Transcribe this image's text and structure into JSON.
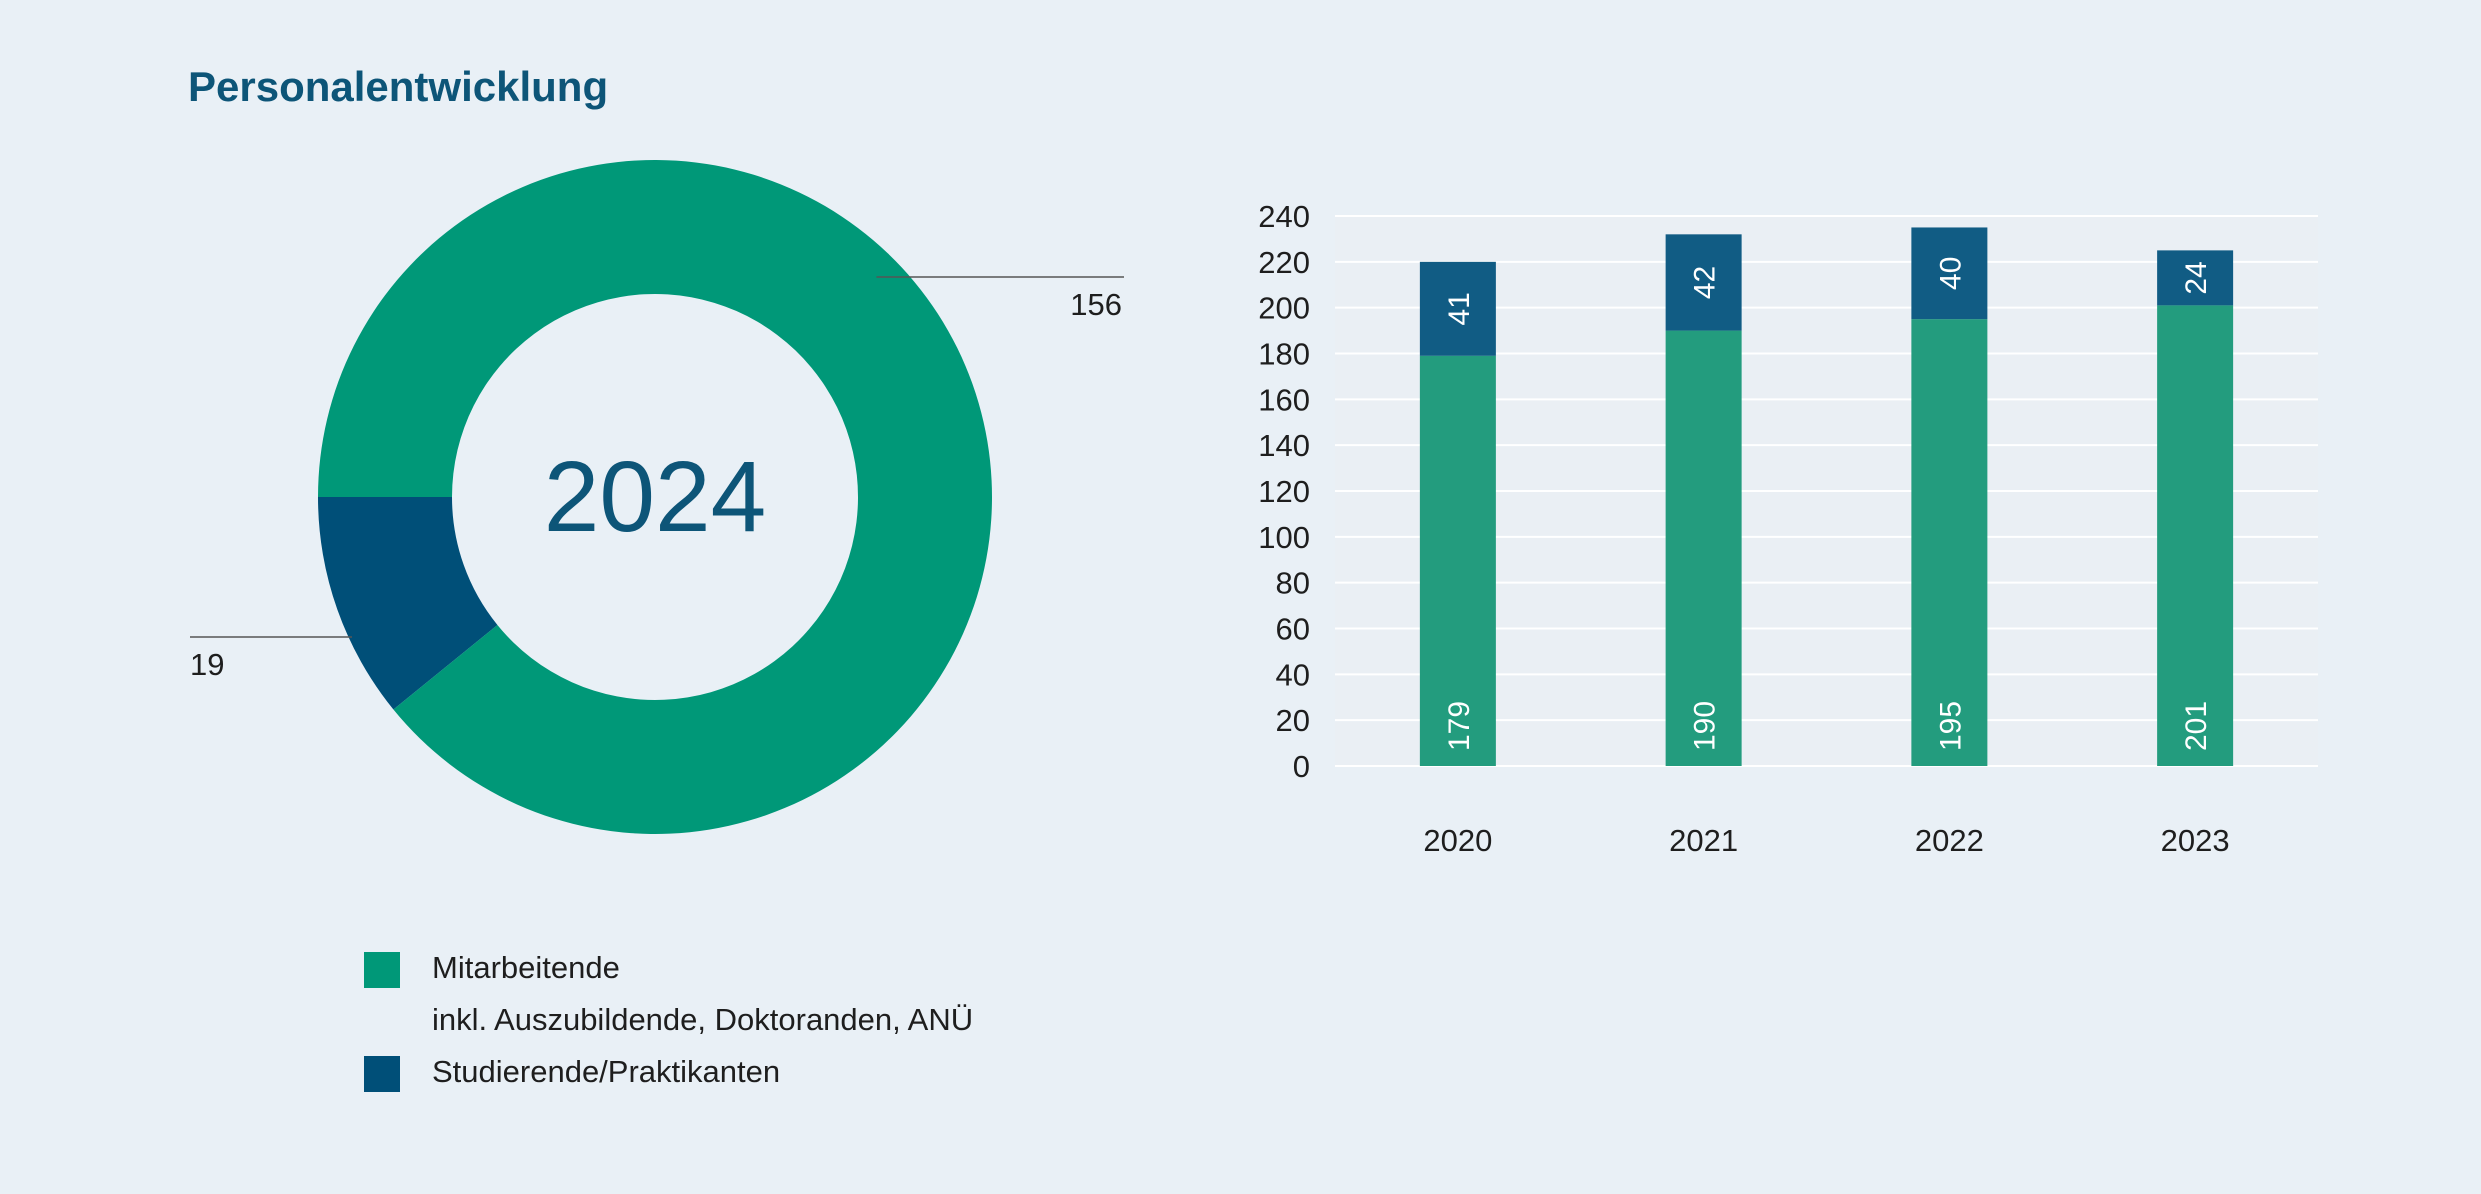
{
  "title": "Personalentwicklung",
  "colors": {
    "mitarbeitende": "#009878",
    "studierende": "#004f78",
    "bar_mitarbeitende": "#239c7e",
    "bar_studierende": "#115c84",
    "background": "#e9f0f6",
    "plot_area": "#eaeff4",
    "gridline": "#ffffff",
    "title": "#0d5578"
  },
  "legend": {
    "items": [
      {
        "label": "Mitarbeitende",
        "sublabel": "inkl. Auszubildende, Doktoranden, ANÜ",
        "color_key": "mitarbeitende"
      },
      {
        "label": "Studierende/Praktikanten",
        "color_key": "studierende"
      }
    ]
  },
  "chart_data": [
    {
      "type": "pie",
      "variant": "donut",
      "center_label": "2024",
      "slices": [
        {
          "name": "Mitarbeitende",
          "value": 156,
          "label": "156",
          "color_key": "mitarbeitende"
        },
        {
          "name": "Studierende/Praktikanten",
          "value": 19,
          "label": "19",
          "color_key": "studierende"
        }
      ]
    },
    {
      "type": "bar",
      "stacked": true,
      "categories": [
        "2020",
        "2021",
        "2022",
        "2023"
      ],
      "series": [
        {
          "name": "Mitarbeitende",
          "values": [
            179,
            190,
            195,
            201
          ],
          "color_key": "bar_mitarbeitende"
        },
        {
          "name": "Studierende/Praktikanten",
          "values": [
            41,
            42,
            40,
            24
          ],
          "color_key": "bar_studierende"
        }
      ],
      "ylim": [
        0,
        240
      ],
      "yticks": [
        "0",
        "20",
        "40",
        "60",
        "80",
        "100",
        "120",
        "140",
        "160",
        "180",
        "200",
        "220",
        "240"
      ],
      "grid": true,
      "legend": "bottom-left"
    }
  ]
}
